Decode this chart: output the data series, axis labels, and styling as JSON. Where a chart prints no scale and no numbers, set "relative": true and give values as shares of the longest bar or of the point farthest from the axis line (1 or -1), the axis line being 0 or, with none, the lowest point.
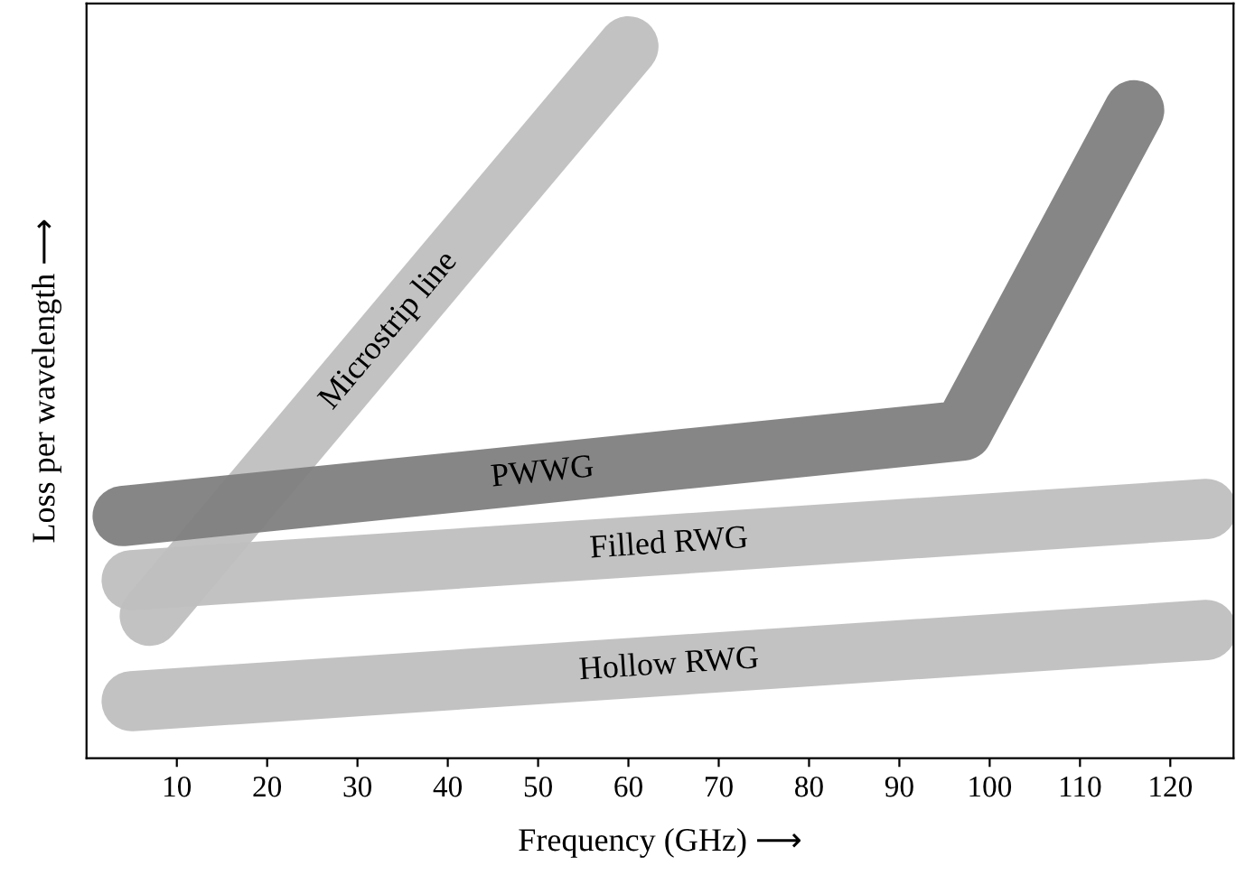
{
  "chart_data": {
    "type": "line",
    "relative": true,
    "xlabel": "Frequency (GHz) ⟶",
    "ylabel": "Loss per wavelength ⟶",
    "xlim": [
      0,
      127
    ],
    "xticks": [
      10,
      20,
      30,
      40,
      50,
      60,
      70,
      80,
      90,
      100,
      110,
      120
    ],
    "tick_labels": "x",
    "grid": false,
    "legend": false,
    "marker": "none",
    "line_style": "solid",
    "series": [
      {
        "name": "Microstrip line",
        "color": "#bfbfbf",
        "x": [
          7,
          60
        ],
        "values": [
          0.2,
          1
        ]
      },
      {
        "name": "Filled RWG",
        "color": "#bfbfbf",
        "x": [
          5,
          124
        ],
        "values": [
          0.25,
          0.35
        ]
      },
      {
        "name": "Hollow RWG",
        "color": "#bfbfbf",
        "x": [
          5,
          124
        ],
        "values": [
          0.08,
          0.18
        ]
      },
      {
        "name": "PWWG",
        "color": "#7f7f7f",
        "x": [
          4,
          97,
          116
        ],
        "values": [
          0.34,
          0.46,
          0.91
        ]
      }
    ]
  }
}
